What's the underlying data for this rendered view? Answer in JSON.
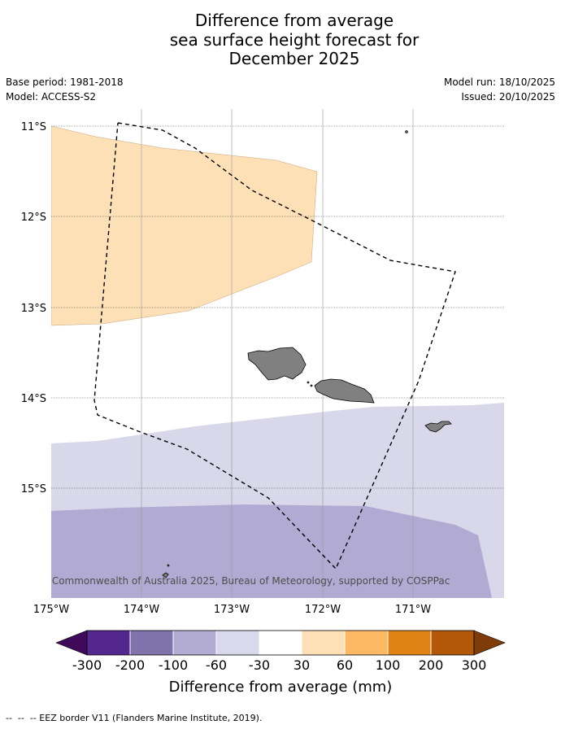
{
  "title": {
    "line1": "Difference from average",
    "line2": "sea surface height forecast for",
    "line3": "December 2025"
  },
  "meta": {
    "base_period": "Base period: 1981-2018",
    "model": "Model: ACCESS-S2",
    "model_run": "Model run: 18/10/2025",
    "issued": "Issued: 20/10/2025"
  },
  "map": {
    "lat_labels": [
      "11°S",
      "12°S",
      "13°S",
      "14°S",
      "15°S"
    ],
    "lon_labels": [
      "175°W",
      "174°W",
      "173°W",
      "172°W",
      "171°W"
    ],
    "copyright": "© Commonwealth of Australia 2025, Bureau of Meteorology, supported by COSPPac",
    "regions": [
      {
        "name": "anomaly-30-to-60-mm",
        "color": "#fde0b6"
      },
      {
        "name": "anomaly-minus-60-to-minus-30-mm",
        "color": "#d8d8ea"
      },
      {
        "name": "anomaly-minus-100-to-minus-60-mm",
        "color": "#b1aad2"
      }
    ],
    "land_color": "#808080"
  },
  "colorbar": {
    "ticks": [
      "-300",
      "-200",
      "-100",
      "-60",
      "-30",
      "30",
      "60",
      "100",
      "200",
      "300"
    ],
    "colors": [
      "#3f0a5a",
      "#54278f",
      "#8073ac",
      "#b2abd2",
      "#d8daeb",
      "#ffffff",
      "#fee0b6",
      "#fdb863",
      "#e08214",
      "#b35806",
      "#7f3b08"
    ],
    "label": "Difference from average (mm)"
  },
  "footer": {
    "eez_legend": "--  --  -- EEZ border V11 (Flanders Marine Institute, 2019)."
  }
}
